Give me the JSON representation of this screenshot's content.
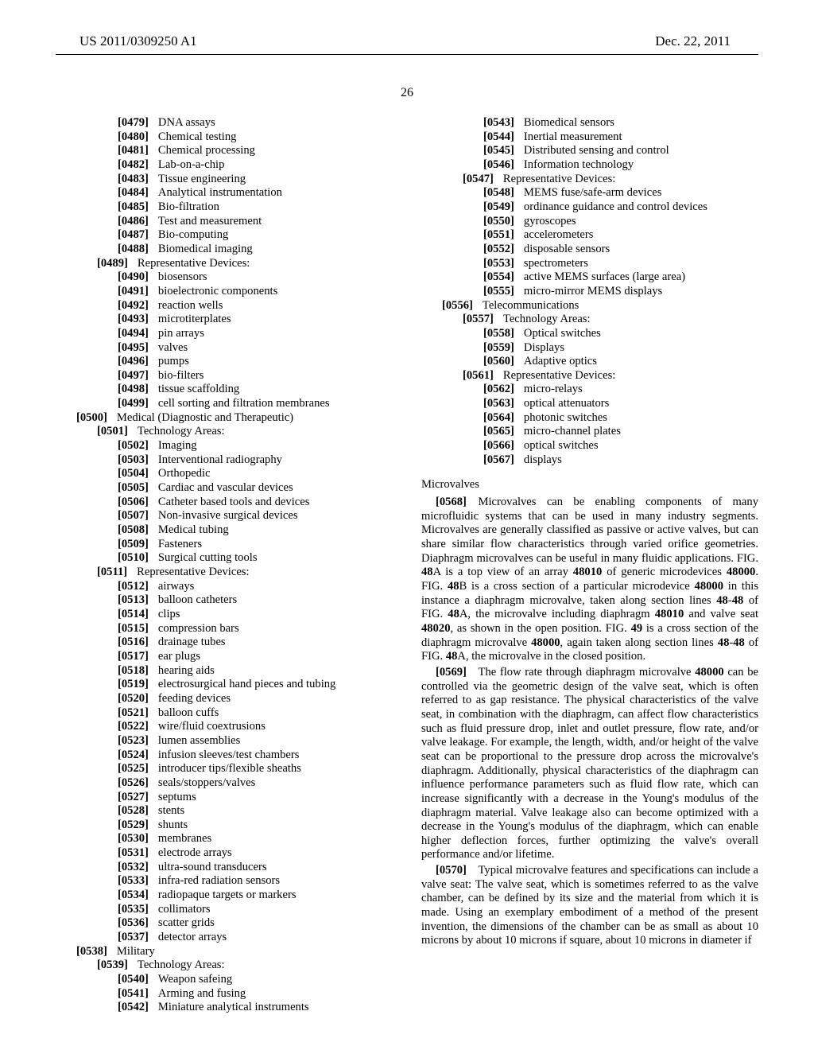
{
  "header": {
    "publication": "US 2011/0309250 A1",
    "date": "Dec. 22, 2011"
  },
  "page_number": "26",
  "left_items": [
    {
      "ind": 3,
      "num": "[0479]",
      "txt": "DNA assays"
    },
    {
      "ind": 3,
      "num": "[0480]",
      "txt": "Chemical testing"
    },
    {
      "ind": 3,
      "num": "[0481]",
      "txt": "Chemical processing"
    },
    {
      "ind": 3,
      "num": "[0482]",
      "txt": "Lab-on-a-chip"
    },
    {
      "ind": 3,
      "num": "[0483]",
      "txt": "Tissue engineering"
    },
    {
      "ind": 3,
      "num": "[0484]",
      "txt": "Analytical instrumentation"
    },
    {
      "ind": 3,
      "num": "[0485]",
      "txt": "Bio-filtration"
    },
    {
      "ind": 3,
      "num": "[0486]",
      "txt": "Test and measurement"
    },
    {
      "ind": 3,
      "num": "[0487]",
      "txt": "Bio-computing"
    },
    {
      "ind": 3,
      "num": "[0488]",
      "txt": "Biomedical imaging"
    },
    {
      "ind": 2,
      "num": "[0489]",
      "txt": "Representative Devices:"
    },
    {
      "ind": 3,
      "num": "[0490]",
      "txt": "biosensors"
    },
    {
      "ind": 3,
      "num": "[0491]",
      "txt": "bioelectronic components"
    },
    {
      "ind": 3,
      "num": "[0492]",
      "txt": "reaction wells"
    },
    {
      "ind": 3,
      "num": "[0493]",
      "txt": "microtiterplates"
    },
    {
      "ind": 3,
      "num": "[0494]",
      "txt": "pin arrays"
    },
    {
      "ind": 3,
      "num": "[0495]",
      "txt": "valves"
    },
    {
      "ind": 3,
      "num": "[0496]",
      "txt": "pumps"
    },
    {
      "ind": 3,
      "num": "[0497]",
      "txt": "bio-filters"
    },
    {
      "ind": 3,
      "num": "[0498]",
      "txt": "tissue scaffolding"
    },
    {
      "ind": 3,
      "num": "[0499]",
      "txt": "cell sorting and filtration membranes"
    },
    {
      "ind": 1,
      "num": "[0500]",
      "txt": "Medical (Diagnostic and Therapeutic)"
    },
    {
      "ind": 2,
      "num": "[0501]",
      "txt": "Technology Areas:"
    },
    {
      "ind": 3,
      "num": "[0502]",
      "txt": "Imaging"
    },
    {
      "ind": 3,
      "num": "[0503]",
      "txt": "Interventional radiography"
    },
    {
      "ind": 3,
      "num": "[0504]",
      "txt": "Orthopedic"
    },
    {
      "ind": 3,
      "num": "[0505]",
      "txt": "Cardiac and vascular devices"
    },
    {
      "ind": 3,
      "num": "[0506]",
      "txt": "Catheter based tools and devices"
    },
    {
      "ind": 3,
      "num": "[0507]",
      "txt": "Non-invasive surgical devices"
    },
    {
      "ind": 3,
      "num": "[0508]",
      "txt": "Medical tubing"
    },
    {
      "ind": 3,
      "num": "[0509]",
      "txt": "Fasteners"
    },
    {
      "ind": 3,
      "num": "[0510]",
      "txt": "Surgical cutting tools"
    },
    {
      "ind": 2,
      "num": "[0511]",
      "txt": "Representative Devices:"
    },
    {
      "ind": 3,
      "num": "[0512]",
      "txt": "airways"
    },
    {
      "ind": 3,
      "num": "[0513]",
      "txt": "balloon catheters"
    },
    {
      "ind": 3,
      "num": "[0514]",
      "txt": "clips"
    },
    {
      "ind": 3,
      "num": "[0515]",
      "txt": "compression bars"
    },
    {
      "ind": 3,
      "num": "[0516]",
      "txt": "drainage tubes"
    },
    {
      "ind": 3,
      "num": "[0517]",
      "txt": "ear plugs"
    },
    {
      "ind": 3,
      "num": "[0518]",
      "txt": "hearing aids"
    },
    {
      "ind": 3,
      "num": "[0519]",
      "txt": "electrosurgical hand pieces and tubing"
    },
    {
      "ind": 3,
      "num": "[0520]",
      "txt": "feeding devices"
    },
    {
      "ind": 3,
      "num": "[0521]",
      "txt": "balloon cuffs"
    },
    {
      "ind": 3,
      "num": "[0522]",
      "txt": "wire/fluid coextrusions"
    },
    {
      "ind": 3,
      "num": "[0523]",
      "txt": "lumen assemblies"
    },
    {
      "ind": 3,
      "num": "[0524]",
      "txt": "infusion sleeves/test chambers"
    },
    {
      "ind": 3,
      "num": "[0525]",
      "txt": "introducer tips/flexible sheaths"
    },
    {
      "ind": 3,
      "num": "[0526]",
      "txt": "seals/stoppers/valves"
    },
    {
      "ind": 3,
      "num": "[0527]",
      "txt": "septums"
    },
    {
      "ind": 3,
      "num": "[0528]",
      "txt": "stents"
    },
    {
      "ind": 3,
      "num": "[0529]",
      "txt": "shunts"
    },
    {
      "ind": 3,
      "num": "[0530]",
      "txt": "membranes"
    },
    {
      "ind": 3,
      "num": "[0531]",
      "txt": "electrode arrays"
    },
    {
      "ind": 3,
      "num": "[0532]",
      "txt": "ultra-sound transducers"
    },
    {
      "ind": 3,
      "num": "[0533]",
      "txt": "infra-red radiation sensors"
    },
    {
      "ind": 3,
      "num": "[0534]",
      "txt": "radiopaque targets or markers"
    },
    {
      "ind": 3,
      "num": "[0535]",
      "txt": "collimators"
    },
    {
      "ind": 3,
      "num": "[0536]",
      "txt": "scatter grids"
    },
    {
      "ind": 3,
      "num": "[0537]",
      "txt": "detector arrays"
    },
    {
      "ind": 1,
      "num": "[0538]",
      "txt": "Military"
    },
    {
      "ind": 2,
      "num": "[0539]",
      "txt": "Technology Areas:"
    },
    {
      "ind": 3,
      "num": "[0540]",
      "txt": "Weapon safeing"
    },
    {
      "ind": 3,
      "num": "[0541]",
      "txt": "Arming and fusing"
    },
    {
      "ind": 3,
      "num": "[0542]",
      "txt": "Miniature analytical instruments"
    }
  ],
  "right_items": [
    {
      "ind": 3,
      "num": "[0543]",
      "txt": "Biomedical sensors"
    },
    {
      "ind": 3,
      "num": "[0544]",
      "txt": "Inertial measurement"
    },
    {
      "ind": 3,
      "num": "[0545]",
      "txt": "Distributed sensing and control"
    },
    {
      "ind": 3,
      "num": "[0546]",
      "txt": "Information technology"
    },
    {
      "ind": 2,
      "num": "[0547]",
      "txt": "Representative Devices:"
    },
    {
      "ind": 3,
      "num": "[0548]",
      "txt": "MEMS fuse/safe-arm devices"
    },
    {
      "ind": 3,
      "num": "[0549]",
      "txt": "ordinance guidance and control devices"
    },
    {
      "ind": 3,
      "num": "[0550]",
      "txt": "gyroscopes"
    },
    {
      "ind": 3,
      "num": "[0551]",
      "txt": "accelerometers"
    },
    {
      "ind": 3,
      "num": "[0552]",
      "txt": "disposable sensors"
    },
    {
      "ind": 3,
      "num": "[0553]",
      "txt": "spectrometers"
    },
    {
      "ind": 3,
      "num": "[0554]",
      "txt": "active MEMS surfaces (large area)"
    },
    {
      "ind": 3,
      "num": "[0555]",
      "txt": "micro-mirror MEMS displays"
    },
    {
      "ind": 1,
      "num": "[0556]",
      "txt": "Telecommunications"
    },
    {
      "ind": 2,
      "num": "[0557]",
      "txt": "Technology Areas:"
    },
    {
      "ind": 3,
      "num": "[0558]",
      "txt": "Optical switches"
    },
    {
      "ind": 3,
      "num": "[0559]",
      "txt": "Displays"
    },
    {
      "ind": 3,
      "num": "[0560]",
      "txt": "Adaptive optics"
    },
    {
      "ind": 2,
      "num": "[0561]",
      "txt": "Representative Devices:"
    },
    {
      "ind": 3,
      "num": "[0562]",
      "txt": "micro-relays"
    },
    {
      "ind": 3,
      "num": "[0563]",
      "txt": "optical attenuators"
    },
    {
      "ind": 3,
      "num": "[0564]",
      "txt": "photonic switches"
    },
    {
      "ind": 3,
      "num": "[0565]",
      "txt": "micro-channel plates"
    },
    {
      "ind": 3,
      "num": "[0566]",
      "txt": "optical switches"
    },
    {
      "ind": 3,
      "num": "[0567]",
      "txt": "displays"
    }
  ],
  "section_heading": "Microvalves",
  "paragraphs": [
    {
      "num": "[0568]",
      "html": "Microvalves can be enabling components of many microfluidic systems that can be used in many industry segments. Microvalves are generally classified as passive or active valves, but can share similar flow characteristics through varied orifice geometries. Diaphragm microvalves can be useful in many fluidic applications. FIG. <b>48</b>A is a top view of an array <b>48010</b> of generic microdevices <b>48000</b>. FIG. <b>48</b>B is a cross section of a particular microdevice <b>48000</b> in this instance a diaphragm microvalve, taken along section lines <b>48</b>-<b>48</b> of FIG. <b>48</b>A, the microvalve including diaphragm <b>48010</b> and valve seat <b>48020</b>, as shown in the open position. FIG. <b>49</b> is a cross section of the diaphragm microvalve <b>48000</b>, again taken along section lines <b>48</b>-<b>48</b> of FIG. <b>48</b>A, the microvalve in the closed position."
    },
    {
      "num": "[0569]",
      "html": "The flow rate through diaphragm microvalve <b>48000</b> can be controlled via the geometric design of the valve seat, which is often referred to as gap resistance. The physical characteristics of the valve seat, in combination with the diaphragm, can affect flow characteristics such as fluid pressure drop, inlet and outlet pressure, flow rate, and/or valve leakage. For example, the length, width, and/or height of the valve seat can be proportional to the pressure drop across the microvalve's diaphragm. Additionally, physical characteristics of the diaphragm can influence performance parameters such as fluid flow rate, which can increase significantly with a decrease in the Young's modulus of the diaphragm material. Valve leakage also can become optimized with a decrease in the Young's modulus of the diaphragm, which can enable higher deflection forces, further optimizing the valve's overall performance and/or lifetime."
    },
    {
      "num": "[0570]",
      "html": "Typical microvalve features and specifications can include a valve seat: The valve seat, which is sometimes referred to as the valve chamber, can be defined by its size and the material from which it is made. Using an exemplary embodiment of a method of the present invention, the dimensions of the chamber can be as small as about 10 microns by about 10 microns if square, about 10 microns in diameter if"
    }
  ]
}
